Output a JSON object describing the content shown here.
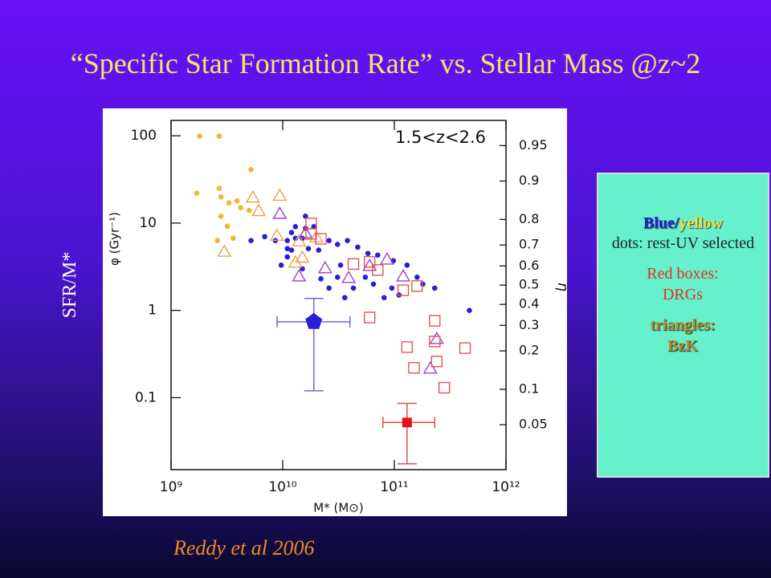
{
  "slide": {
    "title": "“Specific Star Formation Rate” vs. Stellar Mass @z~2",
    "ylabel": "SFR/M*",
    "box": {
      "blue": "Blue",
      "slash": "/",
      "yellow": "yellow",
      "dots": "dots: rest-UV selected",
      "red": "Red boxes: DRGs",
      "triangles": "triangles: BzK"
    },
    "citation": "Reddy et al 2006"
  },
  "chart_data": {
    "type": "scatter",
    "xlabel": "M* (M⊙)",
    "ylabel": "φ (Gyr⁻¹)",
    "y2label": "η",
    "annotation": "1.5<z<2.6",
    "xscale": "log",
    "yscale": "log",
    "y2scale": "logit",
    "xlim": [
      1000000000.0,
      1000000000000.0
    ],
    "ylim": [
      0.015,
      150
    ],
    "y2lim": [
      0.02,
      0.97
    ],
    "xticks": [
      {
        "value": 1000000000.0,
        "label": "10⁹"
      },
      {
        "value": 10000000000.0,
        "label": "10¹⁰"
      },
      {
        "value": 100000000000.0,
        "label": "10¹¹"
      },
      {
        "value": 1000000000000.0,
        "label": "10¹²"
      }
    ],
    "yticks": [
      0.1,
      1,
      10,
      100
    ],
    "y2ticks": [
      0.05,
      0.1,
      0.2,
      0.3,
      0.4,
      0.5,
      0.6,
      0.7,
      0.8,
      0.9,
      0.95
    ],
    "series": [
      {
        "color": "#f5b52e",
        "marker": "circle",
        "x": [
          1800000000.0,
          2700000000.0,
          5200000000.0,
          1700000000.0,
          2700000000.0,
          2800000000.0,
          3300000000.0,
          3900000000.0,
          4200000000.0,
          5000000000.0,
          2800000000.0,
          3200000000.0,
          2600000000.0,
          3600000000.0
        ],
        "values": [
          99,
          99,
          41,
          22,
          25,
          20,
          17,
          18,
          15,
          14,
          12,
          9.2,
          6.3,
          6.7
        ]
      },
      {
        "color": "#2a1fd8",
        "marker": "circle",
        "x": [
          13000000000.0,
          16000000000.0,
          19000000000.0,
          11000000000.0,
          13000000000.0,
          15000000000.0,
          5200000000.0,
          6900000000.0,
          8600000000.0,
          11000000000.0,
          12000000000.0,
          17000000000.0,
          21000000000.0,
          26000000000.0,
          31000000000.0,
          38000000000.0,
          47000000000.0,
          58000000000.0,
          71000000000.0,
          98000000000.0,
          130000000000.0,
          160000000000.0,
          180000000000.0,
          230000000000.0,
          95000000000.0,
          81000000000.0,
          65000000000.0,
          43000000000.0,
          31000000000.0,
          26000000000.0,
          36000000000.0,
          22000000000.0,
          15000000000.0,
          9700000000.0,
          11000000000.0,
          33000000000.0,
          55000000000.0,
          110000000000.0,
          470000000000.0,
          16000000000.0,
          12000000000.0
        ],
        "values": [
          9.1,
          8.7,
          9.1,
          6.3,
          6.7,
          6.7,
          6.3,
          7.0,
          6.3,
          5.1,
          4.9,
          5.1,
          4.9,
          6.3,
          5.7,
          6.3,
          5.3,
          4.5,
          4.3,
          3.7,
          3.3,
          2.4,
          2.0,
          1.8,
          1.8,
          1.4,
          2.0,
          1.8,
          2.4,
          1.8,
          1.4,
          2.3,
          3.0,
          3.3,
          4.1,
          3.3,
          2.4,
          1.5,
          1.0,
          12,
          7.8
        ]
      },
      {
        "color": "#e9a24e",
        "marker": "triangle",
        "x": [
          5400000000.0,
          9400000000.0,
          6100000000.0,
          8900000000.0,
          3000000000.0,
          14000000000.0,
          20000000000.0,
          13000000000.0,
          15000000000.0
        ],
        "values": [
          20,
          21,
          14,
          7.3,
          4.8,
          6.3,
          7.0,
          3.6,
          4.1
        ]
      },
      {
        "color": "#a23fc6",
        "marker": "triangle",
        "x": [
          9400000000.0,
          16000000000.0,
          24000000000.0,
          14000000000.0,
          39000000000.0,
          60000000000.0,
          86000000000.0,
          120000000000.0,
          240000000000.0,
          210000000000.0
        ],
        "values": [
          13,
          7.8,
          3.1,
          2.5,
          2.4,
          3.3,
          3.9,
          2.5,
          0.48,
          0.22
        ]
      },
      {
        "color": "#e45555",
        "marker": "square",
        "x": [
          18000000000.0,
          18000000000.0,
          22000000000.0,
          43000000000.0,
          60000000000.0,
          71000000000.0,
          120000000000.0,
          160000000000.0,
          60000000000.0,
          230000000000.0,
          130000000000.0,
          230000000000.0,
          430000000000.0,
          150000000000.0,
          240000000000.0,
          280000000000.0
        ],
        "values": [
          9.9,
          7.5,
          6.6,
          3.4,
          3.6,
          2.9,
          1.7,
          1.9,
          0.83,
          0.76,
          0.38,
          0.44,
          0.37,
          0.22,
          0.26,
          0.13
        ]
      },
      {
        "color": "#2a1fd8",
        "marker": "pentagon",
        "errcolor": "#6a6ad0",
        "x": [
          19000000000.0
        ],
        "values": [
          0.74
        ],
        "xlow": [
          8900000000.0
        ],
        "xhigh": [
          40000000000.0
        ],
        "ylow": [
          0.12
        ],
        "yhigh": [
          1.37
        ]
      },
      {
        "color": "#e81010",
        "marker": "filled-square",
        "errcolor": "#e05050",
        "x": [
          130000000000.0
        ],
        "values": [
          0.052
        ],
        "xlow": [
          79000000000.0
        ],
        "xhigh": [
          230000000000.0
        ],
        "ylow": [
          0.0175
        ],
        "yhigh": [
          0.086
        ]
      }
    ]
  }
}
